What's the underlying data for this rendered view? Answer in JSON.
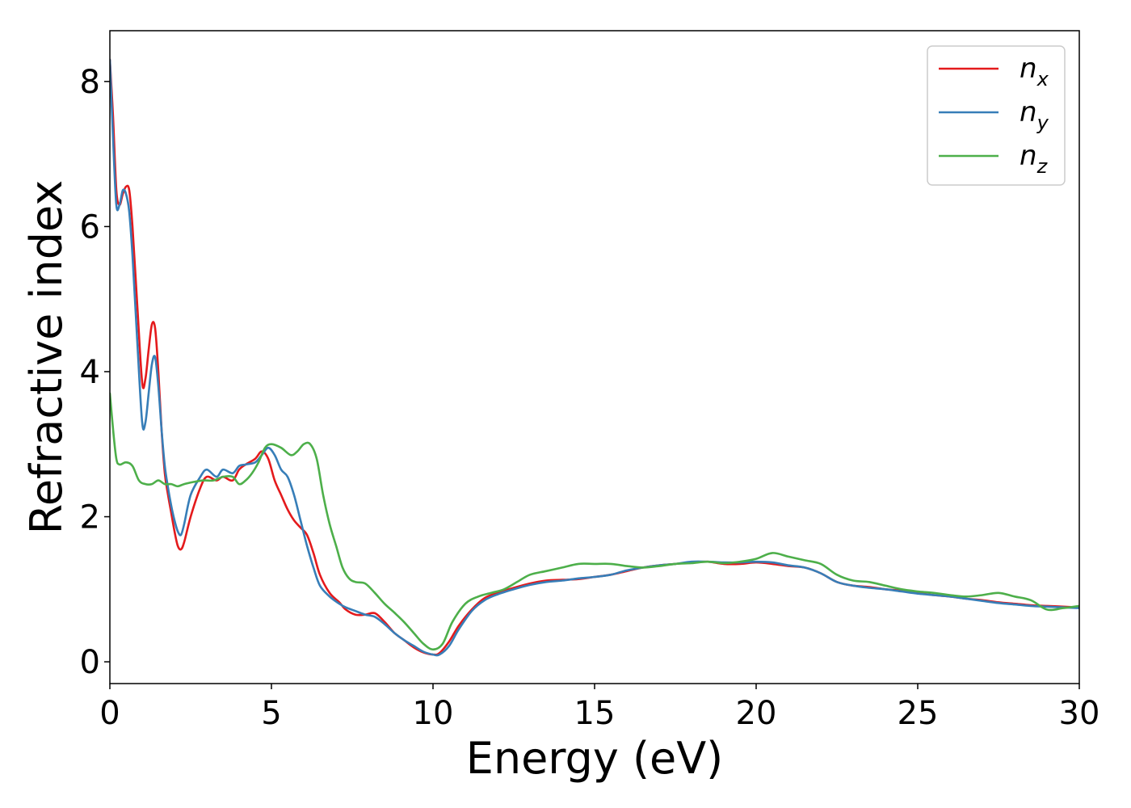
{
  "chart_data": {
    "type": "line",
    "xlabel": "Energy (eV)",
    "ylabel": "Refractive index",
    "xlim": [
      0,
      30
    ],
    "ylim": [
      -0.3,
      8.7
    ],
    "xticks": [
      0,
      5,
      10,
      15,
      20,
      25,
      30
    ],
    "yticks": [
      0,
      2,
      4,
      6,
      8
    ],
    "grid": false,
    "legend_position": "top-right",
    "series": [
      {
        "name": "n",
        "subscript": "x",
        "color": "#e41a1c",
        "x": [
          0,
          0.1,
          0.2,
          0.3,
          0.4,
          0.5,
          0.6,
          0.7,
          0.85,
          1.0,
          1.1,
          1.2,
          1.3,
          1.4,
          1.5,
          1.6,
          1.7,
          1.8,
          1.9,
          2.0,
          2.1,
          2.2,
          2.3,
          2.5,
          2.8,
          3.0,
          3.3,
          3.5,
          3.8,
          4.0,
          4.2,
          4.5,
          4.7,
          4.9,
          5.1,
          5.3,
          5.5,
          5.7,
          5.9,
          6.1,
          6.3,
          6.5,
          6.8,
          7.1,
          7.3,
          7.6,
          7.9,
          8.2,
          8.5,
          8.8,
          9.1,
          9.4,
          9.7,
          10.0,
          10.2,
          10.5,
          10.8,
          11.2,
          11.6,
          12.0,
          12.5,
          13.0,
          13.5,
          14.0,
          14.5,
          15.0,
          15.5,
          16.0,
          16.5,
          17.0,
          17.5,
          18.0,
          18.5,
          19.0,
          19.5,
          20.0,
          20.5,
          21.0,
          21.5,
          22.0,
          22.5,
          23.0,
          23.5,
          24.0,
          24.5,
          25.0,
          25.5,
          26.0,
          26.5,
          27.0,
          27.5,
          28.0,
          28.5,
          29.0,
          29.5,
          30.0
        ],
        "y": [
          8.3,
          7.5,
          6.5,
          6.3,
          6.45,
          6.55,
          6.5,
          6.0,
          4.9,
          3.85,
          3.9,
          4.3,
          4.65,
          4.6,
          4.0,
          3.2,
          2.6,
          2.3,
          2.05,
          1.8,
          1.6,
          1.55,
          1.65,
          2.0,
          2.4,
          2.55,
          2.5,
          2.55,
          2.5,
          2.65,
          2.72,
          2.8,
          2.9,
          2.8,
          2.5,
          2.3,
          2.1,
          1.95,
          1.85,
          1.75,
          1.5,
          1.2,
          0.95,
          0.82,
          0.72,
          0.65,
          0.65,
          0.67,
          0.55,
          0.4,
          0.3,
          0.2,
          0.13,
          0.1,
          0.12,
          0.28,
          0.5,
          0.72,
          0.88,
          0.95,
          1.02,
          1.08,
          1.12,
          1.13,
          1.14,
          1.17,
          1.2,
          1.25,
          1.3,
          1.33,
          1.35,
          1.37,
          1.38,
          1.35,
          1.35,
          1.37,
          1.35,
          1.32,
          1.3,
          1.22,
          1.1,
          1.05,
          1.03,
          1.0,
          0.98,
          0.95,
          0.92,
          0.9,
          0.87,
          0.85,
          0.82,
          0.8,
          0.78,
          0.77,
          0.76,
          0.75
        ]
      },
      {
        "name": "n",
        "subscript": "y",
        "color": "#377eb8",
        "x": [
          0,
          0.1,
          0.2,
          0.3,
          0.4,
          0.5,
          0.6,
          0.7,
          0.85,
          1.0,
          1.1,
          1.2,
          1.3,
          1.4,
          1.5,
          1.6,
          1.7,
          1.8,
          1.9,
          2.0,
          2.1,
          2.2,
          2.3,
          2.5,
          2.8,
          3.0,
          3.3,
          3.5,
          3.8,
          4.0,
          4.2,
          4.5,
          4.7,
          4.9,
          5.1,
          5.3,
          5.5,
          5.7,
          5.9,
          6.1,
          6.3,
          6.5,
          6.8,
          7.1,
          7.3,
          7.6,
          7.9,
          8.2,
          8.5,
          8.8,
          9.1,
          9.4,
          9.7,
          10.0,
          10.2,
          10.5,
          10.8,
          11.2,
          11.6,
          12.0,
          12.5,
          13.0,
          13.5,
          14.0,
          14.5,
          15.0,
          15.5,
          16.0,
          16.5,
          17.0,
          17.5,
          18.0,
          18.5,
          19.0,
          19.5,
          20.0,
          20.5,
          21.0,
          21.5,
          22.0,
          22.5,
          23.0,
          23.5,
          24.0,
          24.5,
          25.0,
          25.5,
          26.0,
          26.5,
          27.0,
          27.5,
          28.0,
          28.5,
          29.0,
          29.5,
          30.0
        ],
        "y": [
          8.3,
          7.2,
          6.3,
          6.3,
          6.5,
          6.45,
          6.2,
          5.6,
          4.4,
          3.3,
          3.3,
          3.7,
          4.1,
          4.2,
          3.8,
          3.2,
          2.7,
          2.4,
          2.15,
          1.95,
          1.8,
          1.75,
          1.9,
          2.3,
          2.55,
          2.65,
          2.55,
          2.65,
          2.6,
          2.7,
          2.72,
          2.75,
          2.85,
          2.95,
          2.85,
          2.65,
          2.55,
          2.3,
          1.95,
          1.6,
          1.3,
          1.05,
          0.9,
          0.8,
          0.75,
          0.7,
          0.65,
          0.62,
          0.52,
          0.4,
          0.3,
          0.22,
          0.14,
          0.1,
          0.1,
          0.22,
          0.45,
          0.7,
          0.85,
          0.93,
          1.0,
          1.06,
          1.1,
          1.12,
          1.15,
          1.17,
          1.2,
          1.26,
          1.3,
          1.33,
          1.35,
          1.38,
          1.38,
          1.37,
          1.37,
          1.38,
          1.37,
          1.33,
          1.3,
          1.22,
          1.1,
          1.05,
          1.02,
          1.0,
          0.97,
          0.94,
          0.92,
          0.9,
          0.87,
          0.84,
          0.81,
          0.79,
          0.77,
          0.76,
          0.75,
          0.74
        ]
      },
      {
        "name": "n",
        "subscript": "z",
        "color": "#4daf4a",
        "x": [
          0,
          0.1,
          0.2,
          0.3,
          0.5,
          0.7,
          0.9,
          1.1,
          1.3,
          1.5,
          1.7,
          1.9,
          2.1,
          2.3,
          2.6,
          2.9,
          3.2,
          3.5,
          3.8,
          4.0,
          4.2,
          4.4,
          4.6,
          4.8,
          5.0,
          5.3,
          5.6,
          5.8,
          6.0,
          6.2,
          6.4,
          6.6,
          6.8,
          7.0,
          7.2,
          7.4,
          7.6,
          7.9,
          8.2,
          8.5,
          8.8,
          9.1,
          9.4,
          9.7,
          10.0,
          10.3,
          10.6,
          11.0,
          11.4,
          11.8,
          12.2,
          12.6,
          13.0,
          13.5,
          14.0,
          14.5,
          15.0,
          15.5,
          16.0,
          16.5,
          17.0,
          17.5,
          18.0,
          18.5,
          19.0,
          19.5,
          20.0,
          20.5,
          21.0,
          21.5,
          22.0,
          22.5,
          23.0,
          23.5,
          24.0,
          24.5,
          25.0,
          25.5,
          26.0,
          26.5,
          27.0,
          27.5,
          28.0,
          28.5,
          29.0,
          29.5,
          30.0
        ],
        "y": [
          3.7,
          3.2,
          2.8,
          2.72,
          2.75,
          2.7,
          2.5,
          2.45,
          2.45,
          2.5,
          2.45,
          2.45,
          2.42,
          2.45,
          2.48,
          2.5,
          2.5,
          2.55,
          2.55,
          2.45,
          2.5,
          2.6,
          2.75,
          2.95,
          3.0,
          2.95,
          2.85,
          2.9,
          3.0,
          3.0,
          2.8,
          2.3,
          1.9,
          1.6,
          1.3,
          1.15,
          1.1,
          1.08,
          0.95,
          0.8,
          0.68,
          0.55,
          0.4,
          0.25,
          0.17,
          0.25,
          0.55,
          0.8,
          0.9,
          0.95,
          1.0,
          1.1,
          1.2,
          1.25,
          1.3,
          1.35,
          1.35,
          1.35,
          1.32,
          1.3,
          1.32,
          1.35,
          1.36,
          1.38,
          1.36,
          1.38,
          1.42,
          1.5,
          1.45,
          1.4,
          1.35,
          1.2,
          1.12,
          1.1,
          1.05,
          1.0,
          0.97,
          0.95,
          0.92,
          0.9,
          0.92,
          0.95,
          0.9,
          0.85,
          0.72,
          0.74,
          0.77
        ]
      }
    ]
  }
}
